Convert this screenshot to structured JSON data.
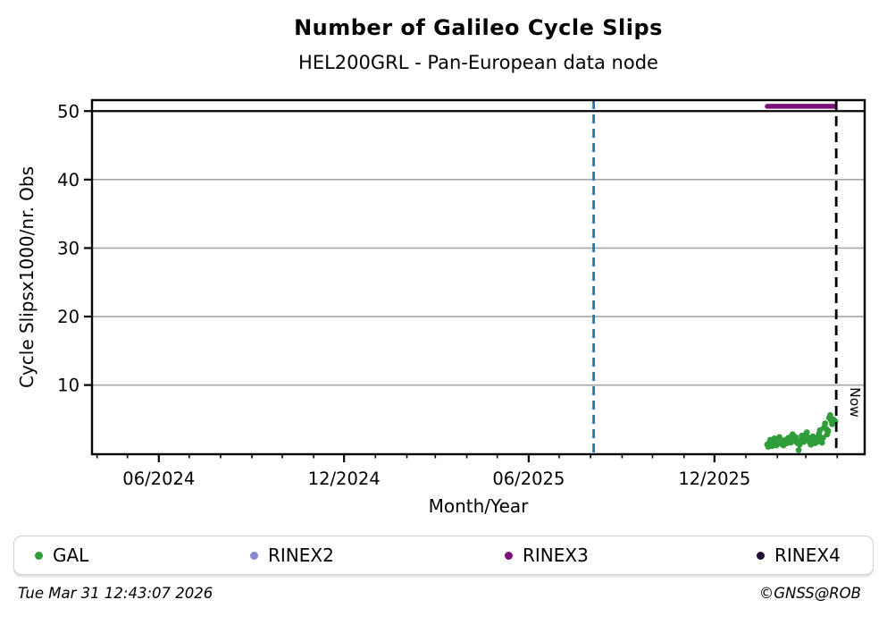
{
  "figure": {
    "title": "Number of Galileo Cycle Slips",
    "subtitle": "HEL200GRL - Pan-European data node",
    "footer_left": "Tue Mar 31 12:43:07 2026",
    "footer_right": "©GNSS@ROB"
  },
  "chart_data": {
    "type": "scatter",
    "title": "Number of Galileo Cycle Slips",
    "subtitle": "HEL200GRL - Pan-European data node",
    "xlabel": "Month/Year",
    "ylabel": "Cycle Slipsx1000/nr. Obs",
    "xlim_dates": [
      "2024-03-27",
      "2026-04-28"
    ],
    "ylim": [
      -0.1,
      51.6
    ],
    "yticks": [
      10,
      20,
      30,
      40,
      50
    ],
    "ytick_special": {
      "value": 50,
      "color": "#000000",
      "width": 2.2
    },
    "xtick_major_months": [
      6,
      12
    ],
    "xtick_label_format": "MM/YYYY",
    "xtick_major_labels": [
      "06/2024",
      "12/2024",
      "06/2025",
      "12/2025"
    ],
    "grid": "horizontal",
    "grid_color": "#a6a6a6",
    "legend_position": "bottom",
    "event_line": {
      "date": "2025-08-04",
      "color": "#1f77b4",
      "style": "dashed"
    },
    "now_line": {
      "date": "2026-03-31",
      "label": "Now",
      "color": "#000000",
      "style": "dashed"
    },
    "series": [
      {
        "name": "GAL",
        "color": "#2e9d3a",
        "kind": "scatter",
        "points": [
          [
            "2026-01-22",
            1.3
          ],
          [
            "2026-01-23",
            1.0
          ],
          [
            "2026-01-24",
            1.6
          ],
          [
            "2026-01-25",
            2.0
          ],
          [
            "2026-01-26",
            1.4
          ],
          [
            "2026-01-27",
            1.1
          ],
          [
            "2026-01-28",
            1.7
          ],
          [
            "2026-01-29",
            2.2
          ],
          [
            "2026-01-30",
            1.8
          ],
          [
            "2026-01-31",
            1.2
          ],
          [
            "2026-02-01",
            1.5
          ],
          [
            "2026-02-02",
            2.1
          ],
          [
            "2026-02-03",
            2.4
          ],
          [
            "2026-02-04",
            1.8
          ],
          [
            "2026-02-05",
            1.4
          ],
          [
            "2026-02-06",
            1.9
          ],
          [
            "2026-02-07",
            1.2
          ],
          [
            "2026-02-08",
            1.6
          ],
          [
            "2026-02-09",
            2.0
          ],
          [
            "2026-02-10",
            1.5
          ],
          [
            "2026-02-11",
            1.8
          ],
          [
            "2026-02-12",
            2.3
          ],
          [
            "2026-02-13",
            2.0
          ],
          [
            "2026-02-14",
            1.6
          ],
          [
            "2026-02-15",
            2.5
          ],
          [
            "2026-02-16",
            2.8
          ],
          [
            "2026-02-17",
            2.2
          ],
          [
            "2026-02-18",
            1.8
          ],
          [
            "2026-02-19",
            2.4
          ],
          [
            "2026-02-20",
            2.0
          ],
          [
            "2026-02-21",
            1.5
          ],
          [
            "2026-02-22",
            0.5
          ],
          [
            "2026-02-23",
            1.3
          ],
          [
            "2026-02-24",
            1.9
          ],
          [
            "2026-02-25",
            2.6
          ],
          [
            "2026-02-26",
            2.2
          ],
          [
            "2026-02-27",
            1.7
          ],
          [
            "2026-02-28",
            2.1
          ],
          [
            "2026-03-01",
            2.8
          ],
          [
            "2026-03-02",
            3.1
          ],
          [
            "2026-03-03",
            2.4
          ],
          [
            "2026-03-04",
            2.0
          ],
          [
            "2026-03-05",
            1.6
          ],
          [
            "2026-03-06",
            1.3
          ],
          [
            "2026-03-07",
            1.9
          ],
          [
            "2026-03-08",
            2.5
          ],
          [
            "2026-03-09",
            1.8
          ],
          [
            "2026-03-10",
            1.5
          ],
          [
            "2026-03-11",
            2.1
          ],
          [
            "2026-03-12",
            1.7
          ],
          [
            "2026-03-13",
            2.4
          ],
          [
            "2026-03-14",
            2.9
          ],
          [
            "2026-03-15",
            3.4
          ],
          [
            "2026-03-16",
            2.0
          ],
          [
            "2026-03-17",
            1.6
          ],
          [
            "2026-03-18",
            2.3
          ],
          [
            "2026-03-19",
            3.8
          ],
          [
            "2026-03-20",
            4.4
          ],
          [
            "2026-03-21",
            3.6
          ],
          [
            "2026-03-22",
            2.8
          ],
          [
            "2026-03-23",
            3.3
          ],
          [
            "2026-03-24",
            5.2
          ],
          [
            "2026-03-25",
            5.6
          ],
          [
            "2026-03-26",
            4.8
          ],
          [
            "2026-03-27",
            4.3
          ],
          [
            "2026-03-28",
            5.0
          ],
          [
            "2026-03-29",
            4.5
          ],
          [
            "2026-03-30",
            4.7
          ]
        ]
      },
      {
        "name": "RINEX2",
        "color": "#8888cf",
        "kind": "hline",
        "points": []
      },
      {
        "name": "RINEX3",
        "color": "#7d107d",
        "kind": "hline",
        "value": 50.7,
        "start": "2026-01-22",
        "end": "2026-03-29"
      },
      {
        "name": "RINEX4",
        "color": "#220a33",
        "kind": "hline",
        "points": []
      }
    ],
    "legend": [
      "GAL",
      "RINEX2",
      "RINEX3",
      "RINEX4"
    ]
  }
}
